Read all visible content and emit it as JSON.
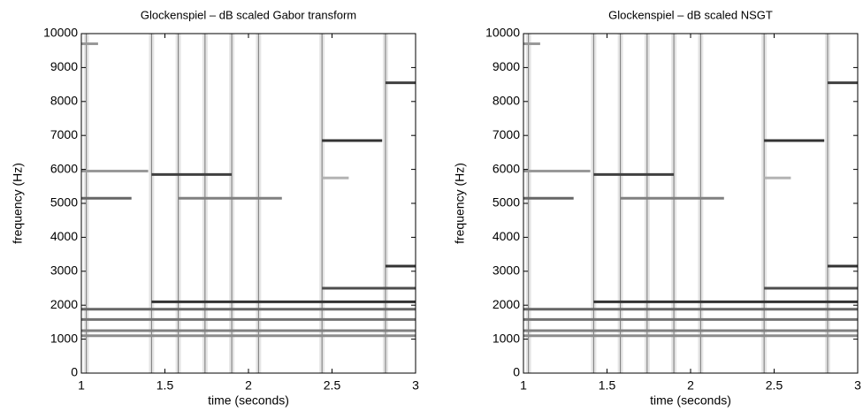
{
  "chart_data": [
    {
      "type": "spectrogram",
      "title": "Glockenspiel – dB scaled Gabor transform",
      "xlabel": "time (seconds)",
      "ylabel": "frequency (Hz)",
      "xlim": [
        1,
        3
      ],
      "ylim": [
        0,
        10000
      ],
      "xticks": [
        1,
        1.5,
        2,
        2.5,
        3
      ],
      "yticks": [
        0,
        1000,
        2000,
        3000,
        4000,
        5000,
        6000,
        7000,
        8000,
        9000,
        10000
      ],
      "onsets": [
        1.03,
        1.42,
        1.58,
        1.74,
        1.9,
        2.06,
        2.44,
        2.82
      ],
      "partials": [
        {
          "t": [
            1.0,
            3.0
          ],
          "f": 1100,
          "level": 0.45
        },
        {
          "t": [
            1.0,
            3.0
          ],
          "f": 1250,
          "level": 0.5
        },
        {
          "t": [
            1.0,
            3.0
          ],
          "f": 1580,
          "level": 0.55
        },
        {
          "t": [
            1.0,
            3.0
          ],
          "f": 1880,
          "level": 0.6
        },
        {
          "t": [
            1.42,
            3.0
          ],
          "f": 2100,
          "level": 0.8
        },
        {
          "t": [
            2.44,
            3.0
          ],
          "f": 2500,
          "level": 0.7
        },
        {
          "t": [
            2.82,
            3.0
          ],
          "f": 3150,
          "level": 0.8
        },
        {
          "t": [
            1.0,
            1.3
          ],
          "f": 5150,
          "level": 0.6
        },
        {
          "t": [
            1.42,
            1.9
          ],
          "f": 5850,
          "level": 0.75
        },
        {
          "t": [
            1.58,
            2.2
          ],
          "f": 5150,
          "level": 0.5
        },
        {
          "t": [
            2.44,
            2.8
          ],
          "f": 6850,
          "level": 0.8
        },
        {
          "t": [
            2.82,
            3.0
          ],
          "f": 8550,
          "level": 0.75
        },
        {
          "t": [
            1.0,
            1.1
          ],
          "f": 9700,
          "level": 0.4
        },
        {
          "t": [
            1.0,
            1.4
          ],
          "f": 5950,
          "level": 0.4
        },
        {
          "t": [
            2.44,
            2.6
          ],
          "f": 5750,
          "level": 0.3
        }
      ]
    },
    {
      "type": "spectrogram",
      "title": "Glockenspiel – dB scaled NSGT",
      "xlabel": "time (seconds)",
      "ylabel": "frequency (Hz)",
      "xlim": [
        1,
        3
      ],
      "ylim": [
        0,
        10000
      ],
      "xticks": [
        1,
        1.5,
        2,
        2.5,
        3
      ],
      "yticks": [
        0,
        1000,
        2000,
        3000,
        4000,
        5000,
        6000,
        7000,
        8000,
        9000,
        10000
      ],
      "onsets": [
        1.03,
        1.42,
        1.58,
        1.74,
        1.9,
        2.06,
        2.44,
        2.82
      ],
      "partials": [
        {
          "t": [
            1.0,
            3.0
          ],
          "f": 1100,
          "level": 0.45
        },
        {
          "t": [
            1.0,
            3.0
          ],
          "f": 1250,
          "level": 0.5
        },
        {
          "t": [
            1.0,
            3.0
          ],
          "f": 1580,
          "level": 0.55
        },
        {
          "t": [
            1.0,
            3.0
          ],
          "f": 1880,
          "level": 0.6
        },
        {
          "t": [
            1.42,
            3.0
          ],
          "f": 2100,
          "level": 0.8
        },
        {
          "t": [
            2.44,
            3.0
          ],
          "f": 2500,
          "level": 0.7
        },
        {
          "t": [
            2.82,
            3.0
          ],
          "f": 3150,
          "level": 0.8
        },
        {
          "t": [
            1.0,
            1.3
          ],
          "f": 5150,
          "level": 0.6
        },
        {
          "t": [
            1.42,
            1.9
          ],
          "f": 5850,
          "level": 0.75
        },
        {
          "t": [
            1.58,
            2.2
          ],
          "f": 5150,
          "level": 0.5
        },
        {
          "t": [
            2.44,
            2.8
          ],
          "f": 6850,
          "level": 0.8
        },
        {
          "t": [
            2.82,
            3.0
          ],
          "f": 8550,
          "level": 0.75
        },
        {
          "t": [
            1.0,
            1.1
          ],
          "f": 9700,
          "level": 0.4
        },
        {
          "t": [
            1.0,
            1.4
          ],
          "f": 5950,
          "level": 0.4
        },
        {
          "t": [
            2.44,
            2.6
          ],
          "f": 5750,
          "level": 0.3
        }
      ]
    }
  ]
}
